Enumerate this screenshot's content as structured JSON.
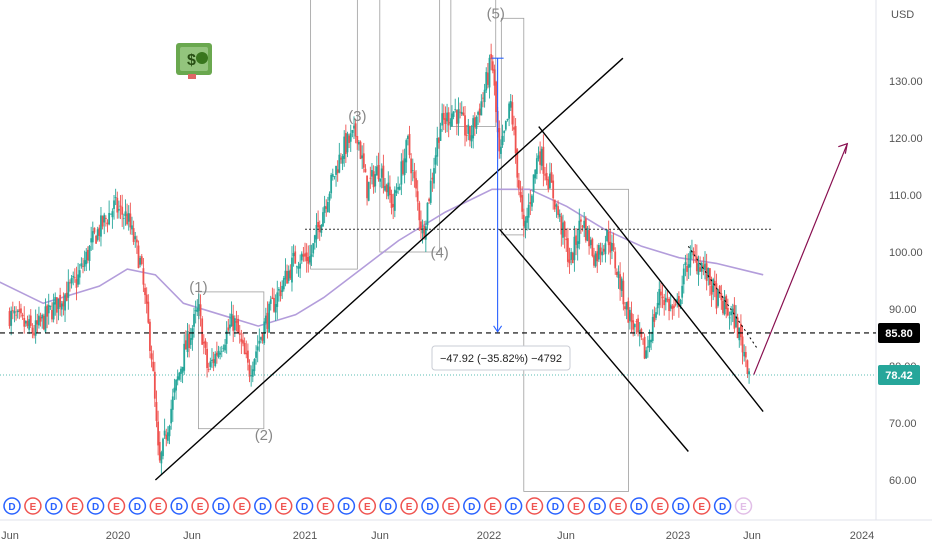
{
  "chart_data": {
    "type": "candlestick",
    "currency": "USD",
    "x_ticks": [
      "Jun",
      "2020",
      "Jun",
      "2021",
      "Jun",
      "2022",
      "Jun",
      "2023",
      "Jun",
      "2024"
    ],
    "y_ticks": [
      "130.00",
      "120.00",
      "110.00",
      "100.00",
      "90.00",
      "80.00",
      "70.00",
      "60.00"
    ],
    "ylim": [
      56,
      146
    ],
    "price_anchors": [
      [
        2019.42,
        89
      ],
      [
        2019.55,
        86
      ],
      [
        2019.65,
        90
      ],
      [
        2019.78,
        95
      ],
      [
        2019.88,
        103
      ],
      [
        2019.98,
        108
      ],
      [
        2020.05,
        106
      ],
      [
        2020.12,
        98
      ],
      [
        2020.18,
        82
      ],
      [
        2020.22,
        62
      ],
      [
        2020.28,
        72
      ],
      [
        2020.35,
        82
      ],
      [
        2020.43,
        90
      ],
      [
        2020.48,
        79
      ],
      [
        2020.55,
        84
      ],
      [
        2020.62,
        88
      ],
      [
        2020.7,
        79
      ],
      [
        2020.78,
        87
      ],
      [
        2020.86,
        93
      ],
      [
        2020.95,
        99
      ],
      [
        2021.03,
        99
      ],
      [
        2021.1,
        108
      ],
      [
        2021.2,
        118
      ],
      [
        2021.28,
        121
      ],
      [
        2021.33,
        111
      ],
      [
        2021.4,
        115
      ],
      [
        2021.47,
        108
      ],
      [
        2021.55,
        119
      ],
      [
        2021.63,
        103
      ],
      [
        2021.72,
        122
      ],
      [
        2021.8,
        125
      ],
      [
        2021.88,
        120
      ],
      [
        2021.95,
        127
      ],
      [
        2022.0,
        134
      ],
      [
        2022.04,
        116
      ],
      [
        2022.1,
        126
      ],
      [
        2022.17,
        103
      ],
      [
        2022.25,
        118
      ],
      [
        2022.32,
        111
      ],
      [
        2022.42,
        98
      ],
      [
        2022.48,
        106
      ],
      [
        2022.55,
        99
      ],
      [
        2022.62,
        103
      ],
      [
        2022.72,
        90
      ],
      [
        2022.82,
        82
      ],
      [
        2022.9,
        93
      ],
      [
        2022.98,
        89
      ],
      [
        2023.05,
        99
      ],
      [
        2023.12,
        98
      ],
      [
        2023.2,
        92
      ],
      [
        2023.3,
        88
      ],
      [
        2023.38,
        79
      ]
    ],
    "moving_average": [
      [
        2019.35,
        95
      ],
      [
        2019.6,
        91
      ],
      [
        2019.9,
        94
      ],
      [
        2020.05,
        97
      ],
      [
        2020.2,
        96
      ],
      [
        2020.35,
        91
      ],
      [
        2020.55,
        89
      ],
      [
        2020.75,
        87
      ],
      [
        2020.95,
        89
      ],
      [
        2021.1,
        92
      ],
      [
        2021.3,
        97
      ],
      [
        2021.5,
        102
      ],
      [
        2021.75,
        107
      ],
      [
        2022.0,
        111
      ],
      [
        2022.2,
        111
      ],
      [
        2022.4,
        108
      ],
      [
        2022.6,
        104
      ],
      [
        2022.8,
        101
      ],
      [
        2023.0,
        99
      ],
      [
        2023.2,
        98
      ],
      [
        2023.45,
        96
      ]
    ],
    "current_price": "78.42",
    "reference_level": "85.80",
    "horizontal_resistance": 104,
    "measurement": {
      "label": "−47.92 (−35.82%) −4792",
      "from_price": 134,
      "to_price": 86,
      "at": 2022.03
    },
    "wave_labels": [
      {
        "label": "(1)",
        "at": 2020.43,
        "price": 93
      },
      {
        "label": "(2)",
        "at": 2020.78,
        "price": 67
      },
      {
        "label": "(3)",
        "at": 2021.28,
        "price": 123
      },
      {
        "label": "(4)",
        "at": 2021.72,
        "price": 99
      },
      {
        "label": "(5)",
        "at": 2022.02,
        "price": 141
      }
    ],
    "trendlines": [
      {
        "name": "rising-support",
        "from": [
          2020.2,
          60
        ],
        "to": [
          2022.7,
          134
        ]
      },
      {
        "name": "channel-upper",
        "from": [
          2022.25,
          122
        ],
        "to": [
          2023.45,
          72
        ]
      },
      {
        "name": "channel-lower",
        "from": [
          2022.04,
          104
        ],
        "to": [
          2023.05,
          65
        ]
      },
      {
        "name": "dotted-resistance",
        "from": [
          2023.05,
          101
        ],
        "to": [
          2023.42,
          83
        ]
      }
    ],
    "projection": {
      "from": [
        2023.4,
        78.5
      ],
      "to": [
        2023.9,
        119
      ]
    },
    "event_markers": [
      "D",
      "E",
      "D",
      "E",
      "D",
      "E",
      "D",
      "E",
      "D",
      "E",
      "D",
      "E",
      "D",
      "E",
      "D",
      "E",
      "D",
      "E",
      "D",
      "E",
      "D",
      "E",
      "D",
      "E",
      "D",
      "E",
      "D",
      "E",
      "D",
      "E",
      "D",
      "E",
      "D",
      "E",
      "D",
      "E"
    ],
    "colors": {
      "up": "#26a69a",
      "down": "#ef5350",
      "moving_average": "#b39ddb",
      "price_tag": "#26a69a",
      "reference_tag": "#000000",
      "measure": "#2962ff",
      "projection": "#880e4f",
      "dividend": "#2962ff",
      "earnings": "#ef5350"
    }
  }
}
